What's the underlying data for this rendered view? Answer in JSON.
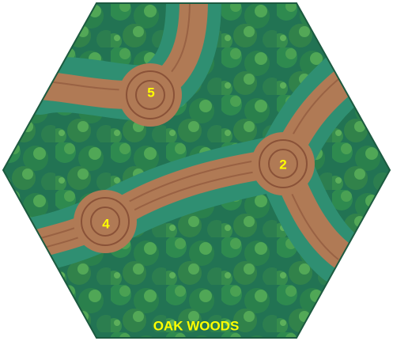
{
  "tile": {
    "name": "OAK WOODS",
    "hexes": [
      {
        "label": "5"
      },
      {
        "label": "2"
      },
      {
        "label": "4"
      }
    ]
  }
}
